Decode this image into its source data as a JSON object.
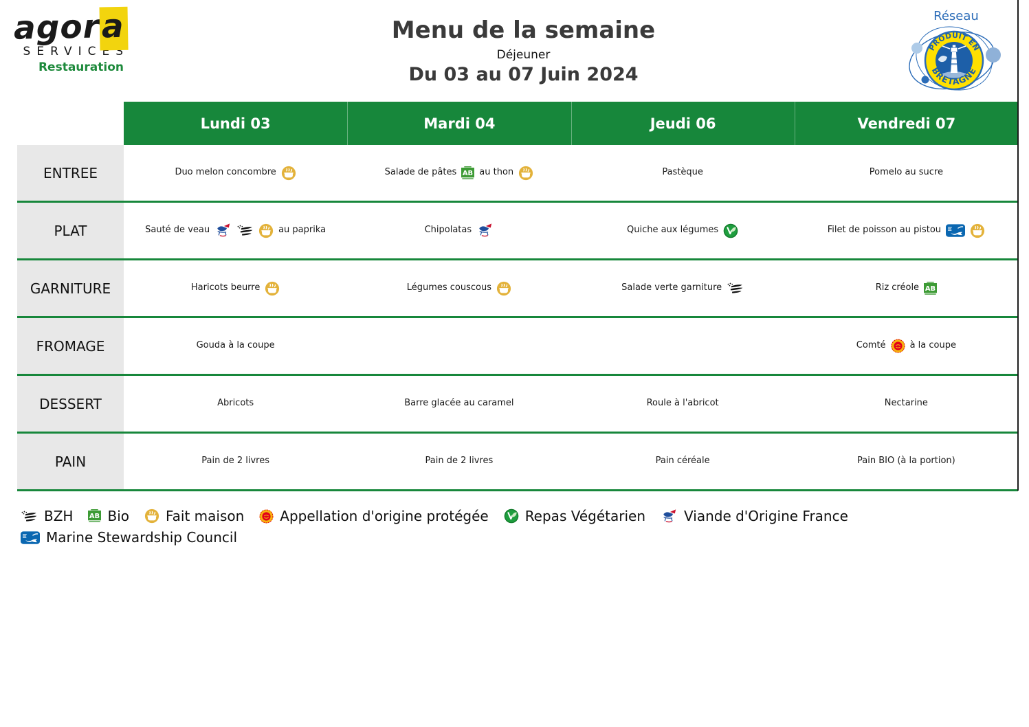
{
  "brand": {
    "name": "agora",
    "services": "SERVICES",
    "restauration": "Restauration"
  },
  "title": {
    "main": "Menu de la semaine",
    "meal": "Déjeuner",
    "dates": "Du 03 au 07 Juin 2024"
  },
  "network_logo": {
    "reseau": "Réseau",
    "arc_top": "PRODUIT EN",
    "arc_bottom": "BRETAGNE"
  },
  "menu": {
    "columns": [
      "Lundi 03",
      "Mardi 04",
      "Jeudi 06",
      "Vendredi 07"
    ],
    "rows": [
      {
        "label": "ENTREE",
        "cells": [
          [
            {
              "t": "Duo melon concombre"
            },
            {
              "i": "fait-maison-icon"
            }
          ],
          [
            {
              "t": "Salade de pâtes"
            },
            {
              "i": "bio-icon"
            },
            {
              "t": "au thon"
            },
            {
              "i": "fait-maison-icon"
            }
          ],
          [
            {
              "t": "Pastèque"
            }
          ],
          [
            {
              "t": "Pomelo au sucre"
            }
          ]
        ]
      },
      {
        "label": "PLAT",
        "cells": [
          [
            {
              "t": "Sauté de veau"
            },
            {
              "i": "viande-france-icon"
            },
            {
              "i": "bzh-icon"
            },
            {
              "i": "fait-maison-icon"
            },
            {
              "t": "au paprika"
            }
          ],
          [
            {
              "t": "Chipolatas"
            },
            {
              "i": "viande-france-icon"
            }
          ],
          [
            {
              "t": "Quiche aux légumes"
            },
            {
              "i": "vegetarian-icon"
            }
          ],
          [
            {
              "t": "Filet de poisson au pistou"
            },
            {
              "i": "msc-icon"
            },
            {
              "i": "fait-maison-icon"
            }
          ]
        ]
      },
      {
        "label": "GARNITURE",
        "cells": [
          [
            {
              "t": "Haricots beurre"
            },
            {
              "i": "fait-maison-icon"
            }
          ],
          [
            {
              "t": "Légumes couscous"
            },
            {
              "i": "fait-maison-icon"
            }
          ],
          [
            {
              "t": "Salade verte garniture"
            },
            {
              "i": "bzh-icon"
            }
          ],
          [
            {
              "t": "Riz créole"
            },
            {
              "i": "bio-icon"
            }
          ]
        ]
      },
      {
        "label": "FROMAGE",
        "cells": [
          [
            {
              "t": "Gouda à la coupe"
            }
          ],
          [],
          [],
          [
            {
              "t": "Comté"
            },
            {
              "i": "aop-icon"
            },
            {
              "t": "à la coupe"
            }
          ]
        ]
      },
      {
        "label": "DESSERT",
        "cells": [
          [
            {
              "t": "Abricots"
            }
          ],
          [
            {
              "t": "Barre glacée au caramel"
            }
          ],
          [
            {
              "t": "Roule à l'abricot"
            }
          ],
          [
            {
              "t": "Nectarine"
            }
          ]
        ]
      },
      {
        "label": "PAIN",
        "cells": [
          [
            {
              "t": "Pain de 2 livres"
            }
          ],
          [
            {
              "t": "Pain de 2 livres"
            }
          ],
          [
            {
              "t": "Pain céréale"
            }
          ],
          [
            {
              "t": "Pain BIO (à la portion)"
            }
          ]
        ]
      }
    ]
  },
  "legend": {
    "lines": [
      [
        {
          "icon": "bzh-icon",
          "label": "BZH"
        },
        {
          "icon": "bio-icon",
          "label": "Bio"
        },
        {
          "icon": "fait-maison-icon",
          "label": "Fait maison"
        },
        {
          "icon": "aop-icon",
          "label": "Appellation d'origine protégée"
        },
        {
          "icon": "vegetarian-icon",
          "label": "Repas Végétarien"
        },
        {
          "icon": "viande-france-icon",
          "label": "Viande d'Origine France"
        }
      ],
      [
        {
          "icon": "msc-icon",
          "label": "Marine Stewardship Council"
        }
      ]
    ]
  },
  "colors": {
    "header_green": "#17873B",
    "label_gray": "#E8E8E8",
    "agora_yellow": "#F2D40E",
    "restauration_green": "#1E8A3C",
    "fait_maison_yellow": "#E3B23A",
    "bio_green": "#3D9B35",
    "vegetarian_green": "#1E9E3E",
    "msc_blue": "#0A67B1",
    "aop_red": "#E2001A",
    "aop_yellow": "#F6B40E",
    "bretagne_blue": "#1D5FA8",
    "bretagne_yellow": "#FFE000"
  }
}
